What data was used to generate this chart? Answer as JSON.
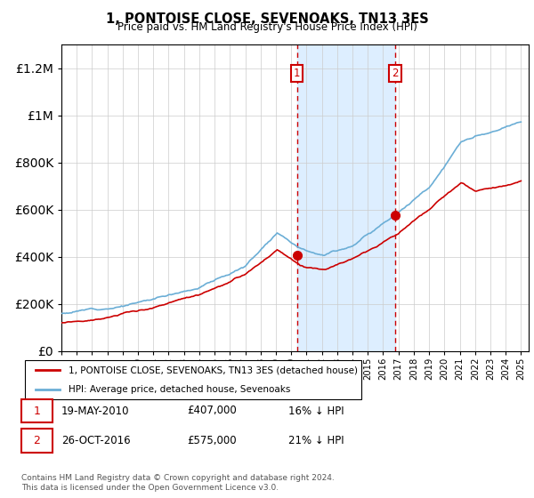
{
  "title": "1, PONTOISE CLOSE, SEVENOAKS, TN13 3ES",
  "subtitle": "Price paid vs. HM Land Registry's House Price Index (HPI)",
  "legend_line1": "1, PONTOISE CLOSE, SEVENOAKS, TN13 3ES (detached house)",
  "legend_line2": "HPI: Average price, detached house, Sevenoaks",
  "footnote": "Contains HM Land Registry data © Crown copyright and database right 2024.\nThis data is licensed under the Open Government Licence v3.0.",
  "transaction1_date": "19-MAY-2010",
  "transaction1_price": "£407,000",
  "transaction1_hpi": "16% ↓ HPI",
  "transaction2_date": "26-OCT-2016",
  "transaction2_price": "£575,000",
  "transaction2_hpi": "21% ↓ HPI",
  "hpi_color": "#6baed6",
  "price_color": "#cc0000",
  "shade_color": "#ddeeff",
  "ylim_max": 1300000,
  "ylim_min": 0,
  "year_start": 1995,
  "year_end": 2025,
  "t1_year": 2010.37,
  "t2_year": 2016.79,
  "t1_price": 407000,
  "t2_price": 575000
}
